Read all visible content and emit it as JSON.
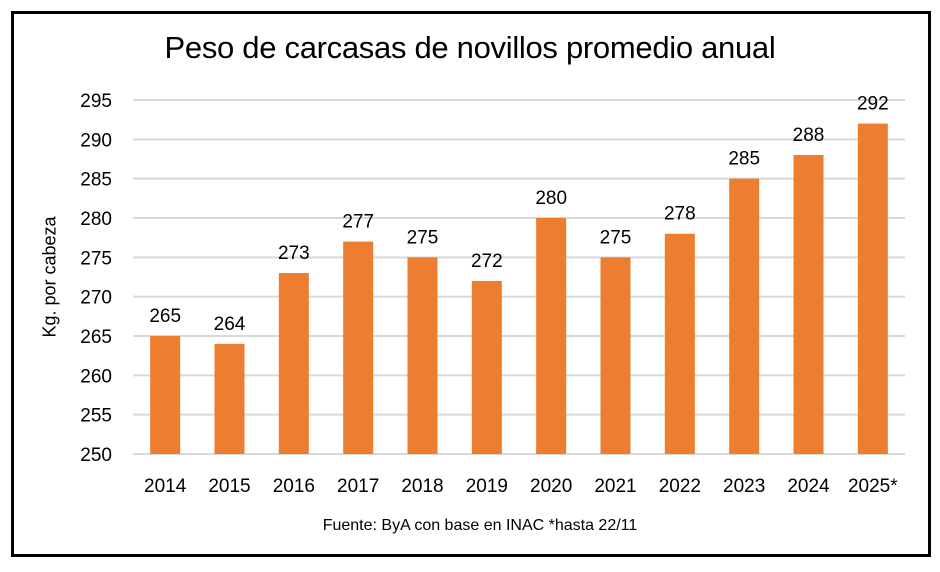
{
  "chart_data": {
    "type": "bar",
    "title": "Peso de carcasas de novillos promedio anual",
    "xlabel": "",
    "ylabel": "Kg. por cabeza",
    "categories": [
      "2014",
      "2015",
      "2016",
      "2017",
      "2018",
      "2019",
      "2020",
      "2021",
      "2022",
      "2023",
      "2024",
      "2025*"
    ],
    "values": [
      265,
      264,
      273,
      277,
      275,
      272,
      280,
      275,
      278,
      285,
      288,
      292
    ],
    "ylim": [
      250,
      295
    ],
    "yticks": [
      250,
      255,
      260,
      265,
      270,
      275,
      280,
      285,
      290,
      295
    ],
    "grid": true,
    "legend": "none",
    "bar_color": "#ED7D31",
    "source_note": "Fuente: ByA con base en INAC *hasta 22/11"
  }
}
